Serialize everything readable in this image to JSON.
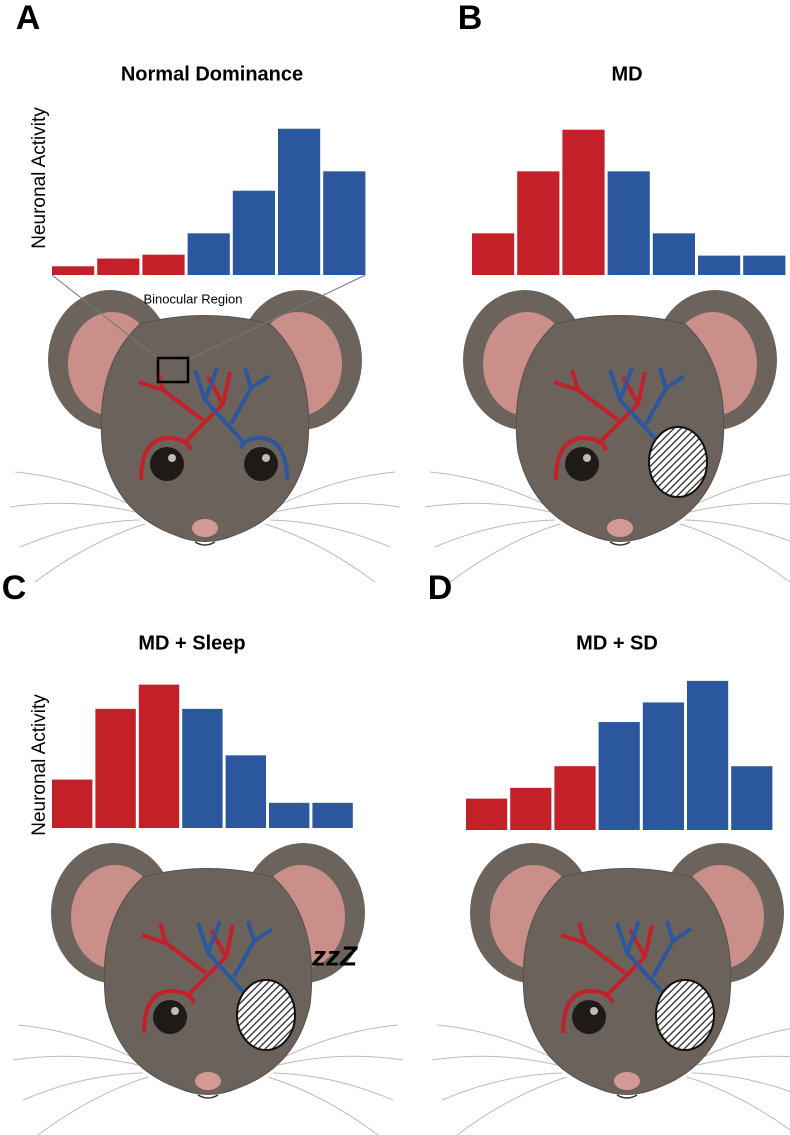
{
  "chart_data": [
    {
      "type": "bar",
      "panel": "A",
      "title": "Normal Dominance",
      "y_label": "Neuronal Activity",
      "annotation": "Binocular Region",
      "values": [
        9,
        17,
        21,
        43,
        87,
        151,
        107
      ],
      "colors": [
        "#c4202a",
        "#c4202a",
        "#c4202a",
        "#2b579e",
        "#2b579e",
        "#2b579e",
        "#2b579e"
      ],
      "ylim": [
        0,
        160
      ]
    },
    {
      "type": "bar",
      "panel": "B",
      "title": "MD",
      "values": [
        43,
        107,
        150,
        107,
        43,
        20,
        20
      ],
      "colors": [
        "#c4202a",
        "#c4202a",
        "#c4202a",
        "#2b579e",
        "#2b579e",
        "#2b579e",
        "#2b579e"
      ],
      "ylim": [
        0,
        160
      ]
    },
    {
      "type": "bar",
      "panel": "C",
      "title": "MD + Sleep",
      "y_label": "Neuronal Activity",
      "annotation": "zzZ",
      "values": [
        50,
        123,
        148,
        123,
        75,
        26,
        26
      ],
      "colors": [
        "#c4202a",
        "#c4202a",
        "#c4202a",
        "#2b579e",
        "#2b579e",
        "#2b579e",
        "#2b579e"
      ],
      "ylim": [
        0,
        160
      ]
    },
    {
      "type": "bar",
      "panel": "D",
      "title": "MD + SD",
      "values": [
        32,
        43,
        65,
        110,
        130,
        152,
        65
      ],
      "colors": [
        "#c4202a",
        "#c4202a",
        "#c4202a",
        "#2b579e",
        "#2b579e",
        "#2b579e",
        "#2b579e"
      ],
      "ylim": [
        0,
        160
      ]
    }
  ]
}
